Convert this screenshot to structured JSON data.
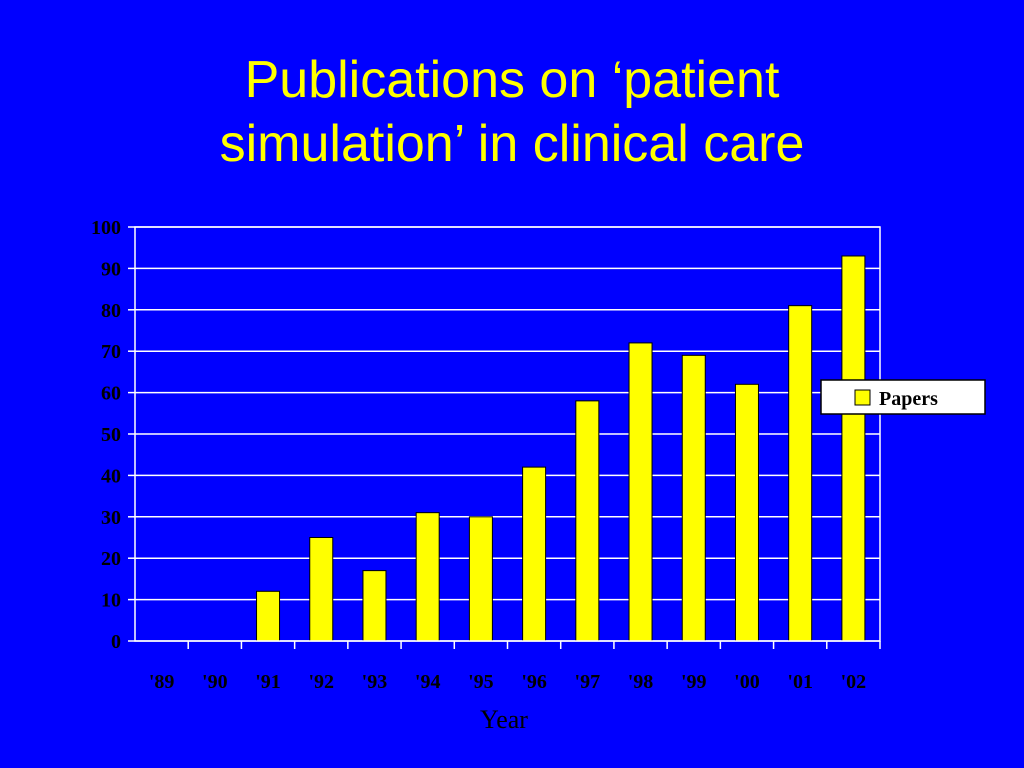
{
  "slide": {
    "title_line1": "Publications on ‘patient",
    "title_line2": "simulation’ in clinical care"
  },
  "colors": {
    "background": "#0000ff",
    "title": "#ffff00",
    "bar": "#ffff00",
    "grid": "#ffffff",
    "text": "#000000"
  },
  "chart_data": {
    "type": "bar",
    "title": "",
    "xlabel": "Year",
    "ylabel": "",
    "categories": [
      "'89",
      "'90",
      "'91",
      "'92",
      "'93",
      "'94",
      "'95",
      "'96",
      "'97",
      "'98",
      "'99",
      "'00",
      "'01",
      "'02"
    ],
    "series": [
      {
        "name": "Papers",
        "values": [
          0,
          0,
          12,
          25,
          17,
          31,
          30,
          42,
          58,
          72,
          69,
          62,
          81,
          93
        ]
      }
    ],
    "ylim": [
      0,
      100
    ],
    "yticks": [
      0,
      10,
      20,
      30,
      40,
      50,
      60,
      70,
      80,
      90,
      100
    ],
    "grid": true,
    "legend": "right"
  }
}
